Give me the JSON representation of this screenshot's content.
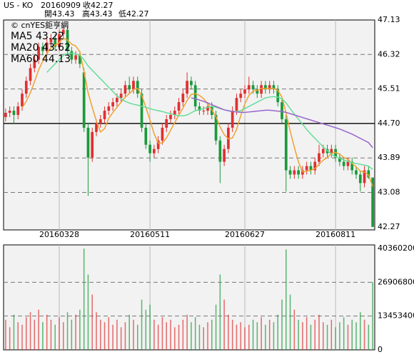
{
  "header": {
    "symbol": "US - KO",
    "date": "20160909",
    "close": "收42.27",
    "open": "開43.43",
    "high": "高43.43",
    "low": "低42.27"
  },
  "chart_data": [
    {
      "type": "candlestick",
      "watermark": "© cnYES鉅亨網",
      "up_color": "#e03030",
      "down_color": "#1a9a3a",
      "categories": [
        null,
        null,
        null,
        null,
        null,
        null,
        null,
        null,
        null,
        null,
        null,
        null,
        null,
        "20160328",
        null,
        null,
        null,
        null,
        null,
        null,
        null,
        null,
        null,
        null,
        null,
        null,
        null,
        null,
        null,
        null,
        null,
        null,
        null,
        null,
        null,
        "20160511",
        null,
        null,
        null,
        null,
        null,
        null,
        null,
        null,
        null,
        null,
        null,
        null,
        null,
        null,
        null,
        null,
        null,
        null,
        null,
        null,
        null,
        null,
        "20160627",
        null,
        null,
        null,
        null,
        null,
        null,
        null,
        null,
        null,
        null,
        null,
        null,
        null,
        null,
        null,
        null,
        null,
        null,
        null,
        null,
        null,
        "20160811",
        null,
        null,
        null,
        null,
        null,
        null,
        null,
        null,
        null
      ],
      "open": [
        44.85,
        44.95,
        45.0,
        44.9,
        45.1,
        45.4,
        45.7,
        46.0,
        46.2,
        46.5,
        46.4,
        46.6,
        46.7,
        46.5,
        46.8,
        46.9,
        46.4,
        46.2,
        46.3,
        45.9,
        44.6,
        43.9,
        44.5,
        44.7,
        44.8,
        45.0,
        45.1,
        45.2,
        45.3,
        45.4,
        45.6,
        45.5,
        45.7,
        45.4,
        44.6,
        44.2,
        44.0,
        44.1,
        44.3,
        44.6,
        44.8,
        44.9,
        45.0,
        45.2,
        45.4,
        45.7,
        45.6,
        45.1,
        45.0,
        45.0,
        45.1,
        44.9,
        44.3,
        43.8,
        44.1,
        44.6,
        45.0,
        45.3,
        45.4,
        45.5,
        45.6,
        45.5,
        45.4,
        45.6,
        45.5,
        45.6,
        45.5,
        45.2,
        44.8,
        43.6,
        43.5,
        43.6,
        43.5,
        43.6,
        43.7,
        43.6,
        43.8,
        44.0,
        44.1,
        44.0,
        44.1,
        43.9,
        43.8,
        43.7,
        43.8,
        43.6,
        43.5,
        43.3,
        43.6,
        43.43
      ],
      "high": [
        45.05,
        45.1,
        45.1,
        45.2,
        45.5,
        45.8,
        46.1,
        46.3,
        46.6,
        46.6,
        46.7,
        46.8,
        46.8,
        46.9,
        47.0,
        47.0,
        46.5,
        46.4,
        46.4,
        46.0,
        44.7,
        44.6,
        44.8,
        44.9,
        45.1,
        45.2,
        45.3,
        45.4,
        45.5,
        45.7,
        45.8,
        45.8,
        45.8,
        45.5,
        44.7,
        44.3,
        44.2,
        44.4,
        44.7,
        44.9,
        45.0,
        45.1,
        45.3,
        45.5,
        45.9,
        45.8,
        45.7,
        45.2,
        45.1,
        45.2,
        45.2,
        45.0,
        44.4,
        44.2,
        44.7,
        45.1,
        45.4,
        45.5,
        45.6,
        45.8,
        45.7,
        45.6,
        45.7,
        45.7,
        45.7,
        45.7,
        45.6,
        45.3,
        44.9,
        43.7,
        43.7,
        43.7,
        43.7,
        43.8,
        43.8,
        43.9,
        44.2,
        44.2,
        44.2,
        44.2,
        44.2,
        44.0,
        43.9,
        43.9,
        43.9,
        43.7,
        43.6,
        43.7,
        43.7,
        43.43
      ],
      "low": [
        44.75,
        44.85,
        44.7,
        44.8,
        45.0,
        45.3,
        45.6,
        45.9,
        46.1,
        46.3,
        46.3,
        46.5,
        46.4,
        46.4,
        46.7,
        46.3,
        46.1,
        46.1,
        46.0,
        44.5,
        43.0,
        43.8,
        44.4,
        44.6,
        44.7,
        44.9,
        45.0,
        45.1,
        45.2,
        45.3,
        45.4,
        45.4,
        45.3,
        44.5,
        44.1,
        43.8,
        43.9,
        44.0,
        44.2,
        44.5,
        44.7,
        44.8,
        44.9,
        45.1,
        45.3,
        45.5,
        45.0,
        44.9,
        44.9,
        44.9,
        44.8,
        44.2,
        43.3,
        43.7,
        44.0,
        44.5,
        44.9,
        45.2,
        45.3,
        45.4,
        45.4,
        45.3,
        45.3,
        45.4,
        45.4,
        45.4,
        45.1,
        44.7,
        43.1,
        43.4,
        43.4,
        43.4,
        43.4,
        43.5,
        43.5,
        43.5,
        43.7,
        43.9,
        43.9,
        43.9,
        43.8,
        43.7,
        43.6,
        43.6,
        43.5,
        43.4,
        43.1,
        43.2,
        43.4,
        42.27
      ],
      "close": [
        44.95,
        45.0,
        44.9,
        45.1,
        45.4,
        45.7,
        46.0,
        46.2,
        46.5,
        46.4,
        46.6,
        46.7,
        46.5,
        46.8,
        46.9,
        46.4,
        46.2,
        46.3,
        46.1,
        44.6,
        43.9,
        44.5,
        44.7,
        44.8,
        45.0,
        45.1,
        45.2,
        45.3,
        45.4,
        45.6,
        45.5,
        45.7,
        45.4,
        44.6,
        44.2,
        44.0,
        44.1,
        44.3,
        44.6,
        44.8,
        44.9,
        45.0,
        45.2,
        45.4,
        45.7,
        45.6,
        45.1,
        45.0,
        45.0,
        45.1,
        44.9,
        44.3,
        43.8,
        44.1,
        44.6,
        45.0,
        45.3,
        45.4,
        45.5,
        45.6,
        45.5,
        45.4,
        45.6,
        45.5,
        45.6,
        45.5,
        45.2,
        44.8,
        43.6,
        43.5,
        43.6,
        43.5,
        43.6,
        43.7,
        43.6,
        43.8,
        44.0,
        44.1,
        44.0,
        44.1,
        43.9,
        43.8,
        43.7,
        43.8,
        43.6,
        43.5,
        43.3,
        43.6,
        43.43,
        42.27
      ],
      "series": [
        {
          "name": "MA5 43.22",
          "color": "#f0a030",
          "values": [
            null,
            null,
            null,
            null,
            45.07,
            45.22,
            45.42,
            45.68,
            45.96,
            46.16,
            46.34,
            46.48,
            46.54,
            46.6,
            46.7,
            46.66,
            46.56,
            46.52,
            46.38,
            45.92,
            45.42,
            45.08,
            44.76,
            44.5,
            44.58,
            44.82,
            44.96,
            45.08,
            45.2,
            45.32,
            45.4,
            45.5,
            45.52,
            45.36,
            45.08,
            44.78,
            44.46,
            44.24,
            44.24,
            44.36,
            44.54,
            44.72,
            44.9,
            45.06,
            45.24,
            45.38,
            45.4,
            45.36,
            45.28,
            45.16,
            45.02,
            44.86,
            44.62,
            44.44,
            44.34,
            44.36,
            44.56,
            44.88,
            45.16,
            45.36,
            45.46,
            45.48,
            45.52,
            45.52,
            45.52,
            45.52,
            45.48,
            45.32,
            44.94,
            44.52,
            44.14,
            43.8,
            43.56,
            43.58,
            43.6,
            43.64,
            43.74,
            43.84,
            43.9,
            44.0,
            44.02,
            43.98,
            43.9,
            43.86,
            43.76,
            43.68,
            43.58,
            43.56,
            43.49,
            43.22
          ]
        },
        {
          "name": "MA20 43.62",
          "color": "#66dd99",
          "values": [
            null,
            null,
            null,
            null,
            null,
            null,
            null,
            null,
            null,
            null,
            45.9,
            46.0,
            46.1,
            46.2,
            46.3,
            46.35,
            46.35,
            46.33,
            46.3,
            46.2,
            46.05,
            45.95,
            45.85,
            45.75,
            45.65,
            45.55,
            45.45,
            45.35,
            45.28,
            45.22,
            45.18,
            45.15,
            45.13,
            45.1,
            45.08,
            45.05,
            45.02,
            45.0,
            44.98,
            44.95,
            44.93,
            44.9,
            44.88,
            44.88,
            44.9,
            44.95,
            45.0,
            45.02,
            45.05,
            45.08,
            45.1,
            45.08,
            45.05,
            45.02,
            45.0,
            44.98,
            44.98,
            45.0,
            45.05,
            45.1,
            45.15,
            45.2,
            45.25,
            45.3,
            45.32,
            45.33,
            45.32,
            45.28,
            45.18,
            45.05,
            44.92,
            44.8,
            44.68,
            44.56,
            44.45,
            44.35,
            44.25,
            44.15,
            44.06,
            43.98,
            43.92,
            43.88,
            43.84,
            43.81,
            43.78,
            43.76,
            43.74,
            43.72,
            43.7,
            43.62
          ]
        },
        {
          "name": "MA60 44.13",
          "color": "#9966cc",
          "values": [
            null,
            null,
            null,
            null,
            null,
            null,
            null,
            null,
            null,
            null,
            null,
            null,
            null,
            null,
            null,
            null,
            null,
            null,
            null,
            null,
            null,
            null,
            null,
            null,
            null,
            null,
            null,
            null,
            null,
            null,
            null,
            null,
            null,
            null,
            null,
            null,
            null,
            null,
            null,
            null,
            null,
            null,
            null,
            null,
            null,
            45.3,
            45.28,
            45.25,
            45.22,
            45.18,
            45.14,
            45.1,
            45.06,
            45.02,
            45.0,
            44.98,
            44.97,
            44.96,
            44.96,
            44.97,
            44.98,
            44.99,
            45.0,
            45.01,
            45.01,
            45.0,
            44.99,
            44.98,
            44.96,
            44.93,
            44.9,
            44.87,
            44.84,
            44.81,
            44.78,
            44.75,
            44.72,
            44.69,
            44.66,
            44.63,
            44.6,
            44.57,
            44.53,
            44.49,
            44.45,
            44.4,
            44.35,
            44.3,
            44.25,
            44.13
          ]
        }
      ],
      "ylim": [
        42.2,
        47.13
      ],
      "yticks": [
        47.13,
        46.32,
        45.51,
        {
          "value": 44.7,
          "label": "44.70"
        },
        43.89,
        43.08,
        42.27
      ],
      "grid": true
    },
    {
      "type": "bar",
      "values": [
        12000000,
        9000000,
        14000000,
        11000000,
        10000000,
        13000000,
        15000000,
        12000000,
        16000000,
        11000000,
        14000000,
        12000000,
        10000000,
        13000000,
        11000000,
        15000000,
        12000000,
        14000000,
        16000000,
        40300000,
        30000000,
        22000000,
        15000000,
        12000000,
        11000000,
        13000000,
        10000000,
        12000000,
        9000000,
        11000000,
        14000000,
        12000000,
        10000000,
        20000000,
        16000000,
        18000000,
        12000000,
        10000000,
        13000000,
        11000000,
        12000000,
        9000000,
        10000000,
        12000000,
        14000000,
        11000000,
        13000000,
        10000000,
        9000000,
        11000000,
        12000000,
        18000000,
        30000000,
        20000000,
        14000000,
        12000000,
        10000000,
        11000000,
        9000000,
        10000000,
        12000000,
        11000000,
        13000000,
        10000000,
        12000000,
        11000000,
        14000000,
        20000000,
        40000000,
        22000000,
        16000000,
        12000000,
        11000000,
        13000000,
        10000000,
        12000000,
        14000000,
        11000000,
        10000000,
        12000000,
        9000000,
        11000000,
        13000000,
        10000000,
        12000000,
        11000000,
        15000000,
        12000000,
        10000000,
        27000000
      ],
      "ylim": [
        0,
        41780000
      ],
      "yticks": [
        40360200,
        26906800,
        13453400,
        0
      ],
      "grid": true
    }
  ]
}
